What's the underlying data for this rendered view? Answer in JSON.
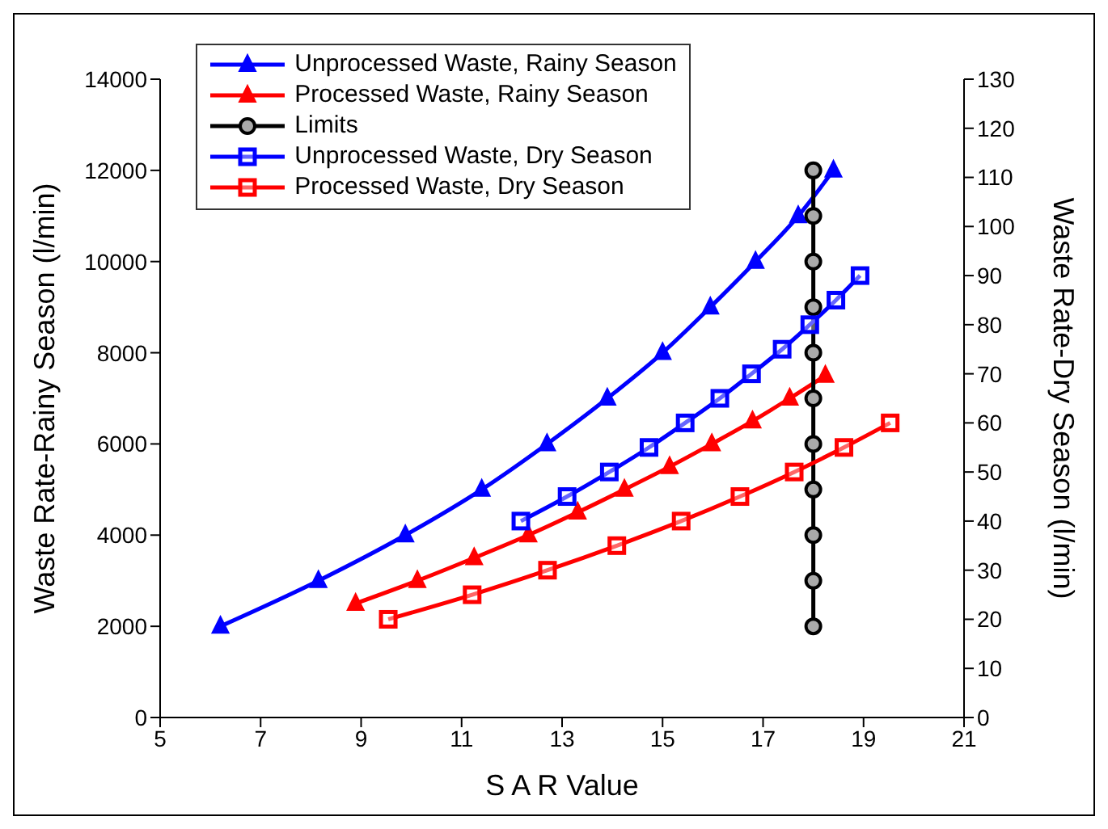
{
  "chart_data": {
    "type": "line",
    "xlabel": "S A R Value",
    "ylabel": "Waste Rate-Rainy Season (l/min)",
    "y2label": "Waste Rate-Dry Season (l/min)",
    "xlim": [
      5,
      21
    ],
    "xticks": [
      5,
      7,
      9,
      11,
      13,
      15,
      17,
      19,
      21
    ],
    "ylim": [
      0,
      14000
    ],
    "yticks": [
      0,
      2000,
      4000,
      6000,
      8000,
      10000,
      12000,
      14000
    ],
    "y2lim": [
      0,
      130
    ],
    "y2ticks": [
      0,
      10,
      20,
      30,
      40,
      50,
      60,
      70,
      80,
      90,
      100,
      110,
      120,
      130
    ],
    "legend": "top left",
    "line_style": "solid",
    "series": [
      {
        "name": "Unprocessed Waste, Rainy Season",
        "color": "#0000ff",
        "marker": "triangle",
        "x": [
          6.2,
          8.15,
          9.88,
          11.4,
          12.7,
          13.9,
          15.0,
          15.95,
          16.85,
          17.7,
          18.4
        ],
        "values": [
          2000,
          3000,
          4000,
          5000,
          6000,
          7000,
          8000,
          9000,
          10000,
          11000,
          12000
        ]
      },
      {
        "name": "Processed Waste, Rainy Season",
        "color": "#ff0000",
        "marker": "triangle",
        "x": [
          8.89,
          10.12,
          11.25,
          12.33,
          13.31,
          14.24,
          15.14,
          15.98,
          16.79,
          17.53,
          18.24
        ],
        "values": [
          2500,
          3000,
          3500,
          4000,
          4500,
          5000,
          5500,
          6000,
          6500,
          7000,
          7500
        ]
      },
      {
        "name": "Limits",
        "color": "#000000",
        "marker": "circle",
        "x": [
          18,
          18,
          18,
          18,
          18,
          18,
          18,
          18,
          18,
          18,
          18
        ],
        "values": [
          2000,
          3000,
          4000,
          5000,
          6000,
          7000,
          8000,
          9000,
          10000,
          11000,
          12000
        ]
      },
      {
        "name": "Unprocessed Waste, Dry Season",
        "color": "#0000ff",
        "marker": "square",
        "axis": "y2",
        "x": [
          12.18,
          13.1,
          13.94,
          14.73,
          15.45,
          16.14,
          16.77,
          17.38,
          17.93,
          18.45,
          18.93
        ],
        "values": [
          40,
          45,
          50,
          55,
          60,
          65,
          70,
          75,
          80,
          85,
          90
        ]
      },
      {
        "name": "Processed Waste, Dry Season",
        "color": "#ff0000",
        "marker": "square",
        "axis": "y2",
        "x": [
          9.54,
          11.21,
          12.71,
          14.09,
          15.37,
          16.54,
          17.62,
          18.61,
          19.53
        ],
        "values": [
          20,
          25,
          30,
          35,
          40,
          45,
          50,
          55,
          60
        ]
      }
    ]
  }
}
